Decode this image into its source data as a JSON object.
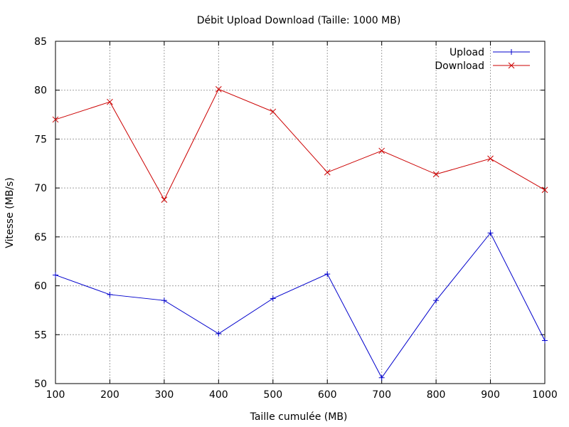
{
  "chart_data": {
    "type": "line",
    "title": "Débit Upload  Download (Taille: 1000 MB)",
    "xlabel": "Taille cumulée (MB)",
    "ylabel": "Vitesse (MB/s)",
    "xlim": [
      100,
      1000
    ],
    "ylim": [
      50,
      85
    ],
    "x_ticks": [
      100,
      200,
      300,
      400,
      500,
      600,
      700,
      800,
      900,
      1000
    ],
    "y_ticks": [
      50,
      55,
      60,
      65,
      70,
      75,
      80,
      85
    ],
    "grid": true,
    "legend_position": "top-right",
    "x": [
      100,
      200,
      300,
      400,
      500,
      600,
      700,
      800,
      900,
      1000
    ],
    "series": [
      {
        "name": "Upload",
        "color": "#0000cc",
        "marker": "plus",
        "values": [
          61.1,
          59.1,
          58.5,
          55.1,
          58.7,
          61.2,
          50.6,
          58.5,
          65.4,
          54.4
        ]
      },
      {
        "name": "Download",
        "color": "#cc0000",
        "marker": "cross",
        "values": [
          77.0,
          78.8,
          68.8,
          80.1,
          77.8,
          71.6,
          73.8,
          71.4,
          73.0,
          69.8
        ]
      }
    ]
  }
}
